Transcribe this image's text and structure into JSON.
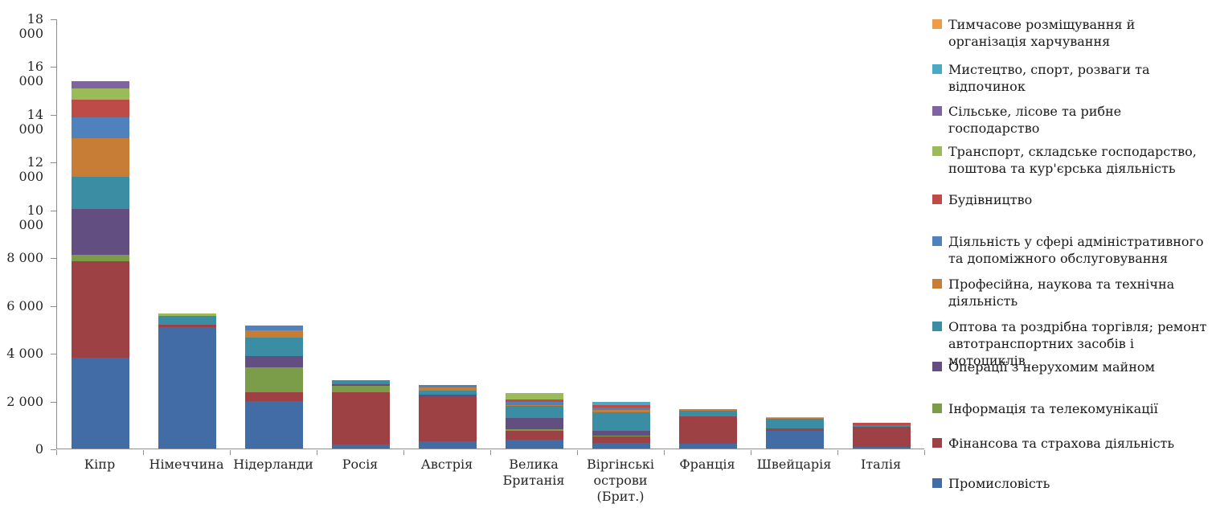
{
  "chart_data": {
    "type": "bar",
    "variant": "stacked-vertical",
    "title": "",
    "xlabel": "",
    "ylabel": "",
    "ylim": [
      0,
      18000
    ],
    "grid": false,
    "legend_position": "right",
    "categories": [
      "Кіпр",
      "Німеччина",
      "Нідерланди",
      "Росія",
      "Австрія",
      "Велика Британія",
      "Віргінські острови (Брит.)",
      "Франція",
      "Швейцарія",
      "Італія"
    ],
    "y_ticks": [
      {
        "value": 0,
        "label": "0"
      },
      {
        "value": 2000,
        "label": "2 000"
      },
      {
        "value": 4000,
        "label": "4 000"
      },
      {
        "value": 6000,
        "label": "6 000"
      },
      {
        "value": 8000,
        "label": "8 000"
      },
      {
        "value": 10000,
        "label": "10 000"
      },
      {
        "value": 12000,
        "label": "12 000"
      },
      {
        "value": 14000,
        "label": "14 000"
      },
      {
        "value": 16000,
        "label": "16 000"
      },
      {
        "value": 18000,
        "label": "18 000"
      }
    ],
    "series_stack_order_note": "series listed bottom-to-top of stack; legend shows reverse order",
    "series": [
      {
        "name": "Промисловість",
        "color": "#416CA5",
        "values": [
          3800,
          5070,
          1970,
          170,
          300,
          370,
          220,
          190,
          750,
          55
        ]
      },
      {
        "name": "Фінансова та страхова діяльність",
        "color": "#9E4144",
        "values": [
          4030,
          110,
          390,
          2200,
          1860,
          380,
          280,
          1150,
          80,
          845
        ]
      },
      {
        "name": "Інформація та телекомунікації",
        "color": "#7B9C49",
        "values": [
          270,
          0,
          1050,
          240,
          0,
          60,
          50,
          0,
          0,
          0
        ]
      },
      {
        "name": "Операції з нерухомим майном",
        "color": "#634E81",
        "values": [
          1940,
          0,
          470,
          90,
          110,
          480,
          190,
          0,
          0,
          0
        ]
      },
      {
        "name": "Оптова та роздрібна торгівля; ремонт автотранспортних засобів і мотоциклів",
        "color": "#3A8DA3",
        "values": [
          1330,
          380,
          750,
          170,
          160,
          490,
          780,
          250,
          410,
          65
        ]
      },
      {
        "name": "Професійна, наукова та технічна діяльність",
        "color": "#C87D36",
        "values": [
          1620,
          0,
          330,
          0,
          130,
          45,
          110,
          45,
          45,
          0
        ]
      },
      {
        "name": "Діяльність у сфері адміністративного та допоміжного обслуговування",
        "color": "#4F81BD",
        "values": [
          880,
          0,
          200,
          0,
          110,
          130,
          90,
          0,
          0,
          0
        ]
      },
      {
        "name": "Будівництво",
        "color": "#BE4B48",
        "values": [
          720,
          0,
          0,
          0,
          0,
          110,
          110,
          0,
          0,
          110
        ]
      },
      {
        "name": "Транспорт, складське господарство, поштова та кур'єрська діяльність",
        "color": "#9BBB59",
        "values": [
          500,
          110,
          0,
          0,
          0,
          250,
          0,
          0,
          0,
          0
        ]
      },
      {
        "name": "Сільське, лісове та рибне господарство",
        "color": "#8064A2",
        "values": [
          280,
          0,
          0,
          0,
          0,
          0,
          0,
          0,
          0,
          0
        ]
      },
      {
        "name": "Мистецтво, спорт, розваги та відпочинок",
        "color": "#4AA9C4",
        "values": [
          0,
          0,
          0,
          0,
          0,
          0,
          130,
          0,
          0,
          0
        ]
      },
      {
        "name": "Тимчасове розміщування й організація харчування",
        "color": "#ED9C49",
        "values": [
          0,
          0,
          0,
          0,
          0,
          0,
          0,
          0,
          45,
          0
        ]
      }
    ]
  },
  "axis_colors": {
    "line": "#8E8E8E",
    "text": "#262626"
  }
}
